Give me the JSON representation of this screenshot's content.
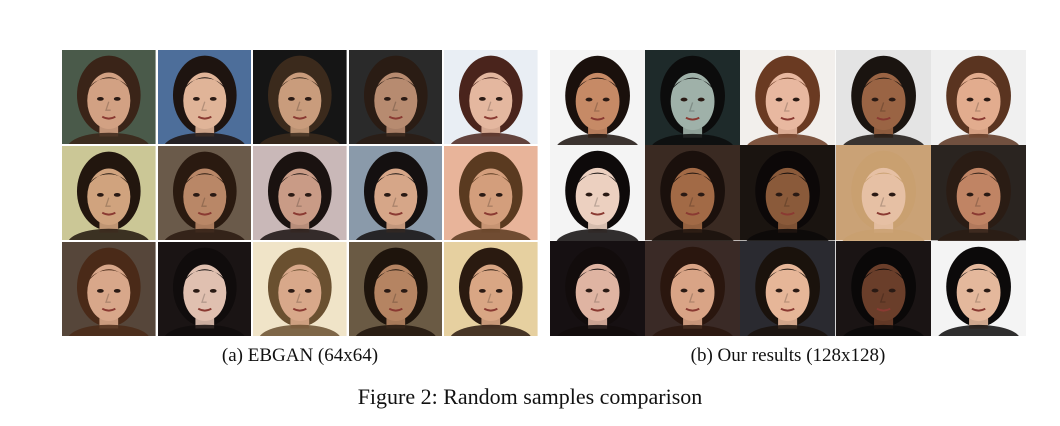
{
  "figure": {
    "caption": "Figure 2: Random samples comparison",
    "subfigures": [
      {
        "caption": "(a) EBGAN (64x64)",
        "faces": [
          {
            "bg": "#4a5a4a",
            "skin": "#d2a183",
            "hair": "#3a2418"
          },
          {
            "bg": "#4d6e9a",
            "skin": "#e0b498",
            "hair": "#1e1410"
          },
          {
            "bg": "#151515",
            "skin": "#c99c7c",
            "hair": "#3b2a1c"
          },
          {
            "bg": "#2a2a2a",
            "skin": "#b78b70",
            "hair": "#2a1c14"
          },
          {
            "bg": "#e9eef4",
            "skin": "#e4b79f",
            "hair": "#4a241c"
          },
          {
            "bg": "#cbc796",
            "skin": "#d0a37e",
            "hair": "#22160e"
          },
          {
            "bg": "#6a5a4a",
            "skin": "#b98767",
            "hair": "#2a1a10"
          },
          {
            "bg": "#c9b8b8",
            "skin": "#c99b86",
            "hair": "#1a1210"
          },
          {
            "bg": "#8a9aaa",
            "skin": "#d6a688",
            "hair": "#141010"
          },
          {
            "bg": "#e8b49a",
            "skin": "#d39e7c",
            "hair": "#5a3a20"
          },
          {
            "bg": "#56463a",
            "skin": "#d8a78a",
            "hair": "#4a2a18"
          },
          {
            "bg": "#1a1414",
            "skin": "#e0c0b0",
            "hair": "#100c0c"
          },
          {
            "bg": "#f0e4c8",
            "skin": "#d8a88a",
            "hair": "#6a5030"
          },
          {
            "bg": "#6a5a44",
            "skin": "#b58462",
            "hair": "#1e140c"
          },
          {
            "bg": "#e6d0a0",
            "skin": "#d9a684",
            "hair": "#2a1a10"
          }
        ]
      },
      {
        "caption": "(b) Our results (128x128)",
        "faces": [
          {
            "bg": "#f4f4f4",
            "skin": "#c68a66",
            "hair": "#1a100c"
          },
          {
            "bg": "#1e2a2a",
            "skin": "#9fb1a9",
            "hair": "#0c0c0c"
          },
          {
            "bg": "#f2efec",
            "skin": "#e8b8a0",
            "hair": "#6a3a22"
          },
          {
            "bg": "#e4e4e4",
            "skin": "#9a6444",
            "hair": "#1a1410"
          },
          {
            "bg": "#f0f0f0",
            "skin": "#e2ac8e",
            "hair": "#5a3420"
          },
          {
            "bg": "#f4f4f4",
            "skin": "#ecd0c0",
            "hair": "#0e0a0a"
          },
          {
            "bg": "#3a2a22",
            "skin": "#a26a46",
            "hair": "#1a100c"
          },
          {
            "bg": "#1a1410",
            "skin": "#8a5a3a",
            "hair": "#0c0808"
          },
          {
            "bg": "#caa276",
            "skin": "#e6c0a4",
            "hair": "#c9a070"
          },
          {
            "bg": "#2a2420",
            "skin": "#c08464",
            "hair": "#2a1c14"
          },
          {
            "bg": "#161012",
            "skin": "#dfb4a2",
            "hair": "#120c0c"
          },
          {
            "bg": "#3a2a26",
            "skin": "#d9a486",
            "hair": "#2a160e"
          },
          {
            "bg": "#2a2a30",
            "skin": "#e6b698",
            "hair": "#1a120c"
          },
          {
            "bg": "#1a1414",
            "skin": "#6a3e2a",
            "hair": "#0a0808"
          },
          {
            "bg": "#f4f4f4",
            "skin": "#e4b89c",
            "hair": "#0c0a0a"
          }
        ]
      }
    ]
  }
}
